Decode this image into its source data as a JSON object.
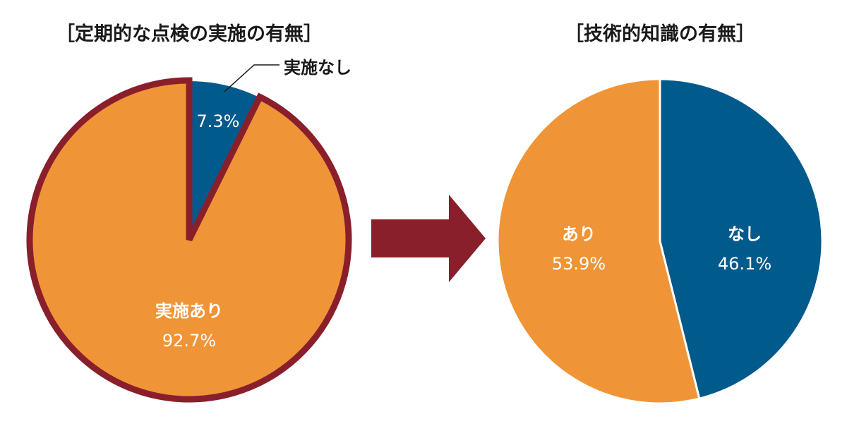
{
  "colors": {
    "orange": "#EF9537",
    "blue": "#015A8C",
    "maroon": "#8A1F2C",
    "callout_line": "#1a1a1a"
  },
  "chart_data": [
    {
      "type": "pie",
      "title": "［定期的な点検の実施の有無］",
      "slices": [
        {
          "label": "実施なし",
          "value": 7.3,
          "value_text": "7.3%",
          "color": "#015A8C"
        },
        {
          "label": "実施あり",
          "value": 92.7,
          "value_text": "92.7%",
          "color": "#EF9537"
        }
      ],
      "highlight_outline": "#8A1F2C"
    },
    {
      "type": "pie",
      "title": "［技術的知識の有無］",
      "slices": [
        {
          "label": "なし",
          "value": 46.1,
          "value_text": "46.1%",
          "color": "#015A8C"
        },
        {
          "label": "あり",
          "value": 53.9,
          "value_text": "53.9%",
          "color": "#EF9537"
        }
      ]
    }
  ],
  "arrow": {
    "color": "#8A1F2C",
    "icon": "right-arrow-icon"
  }
}
